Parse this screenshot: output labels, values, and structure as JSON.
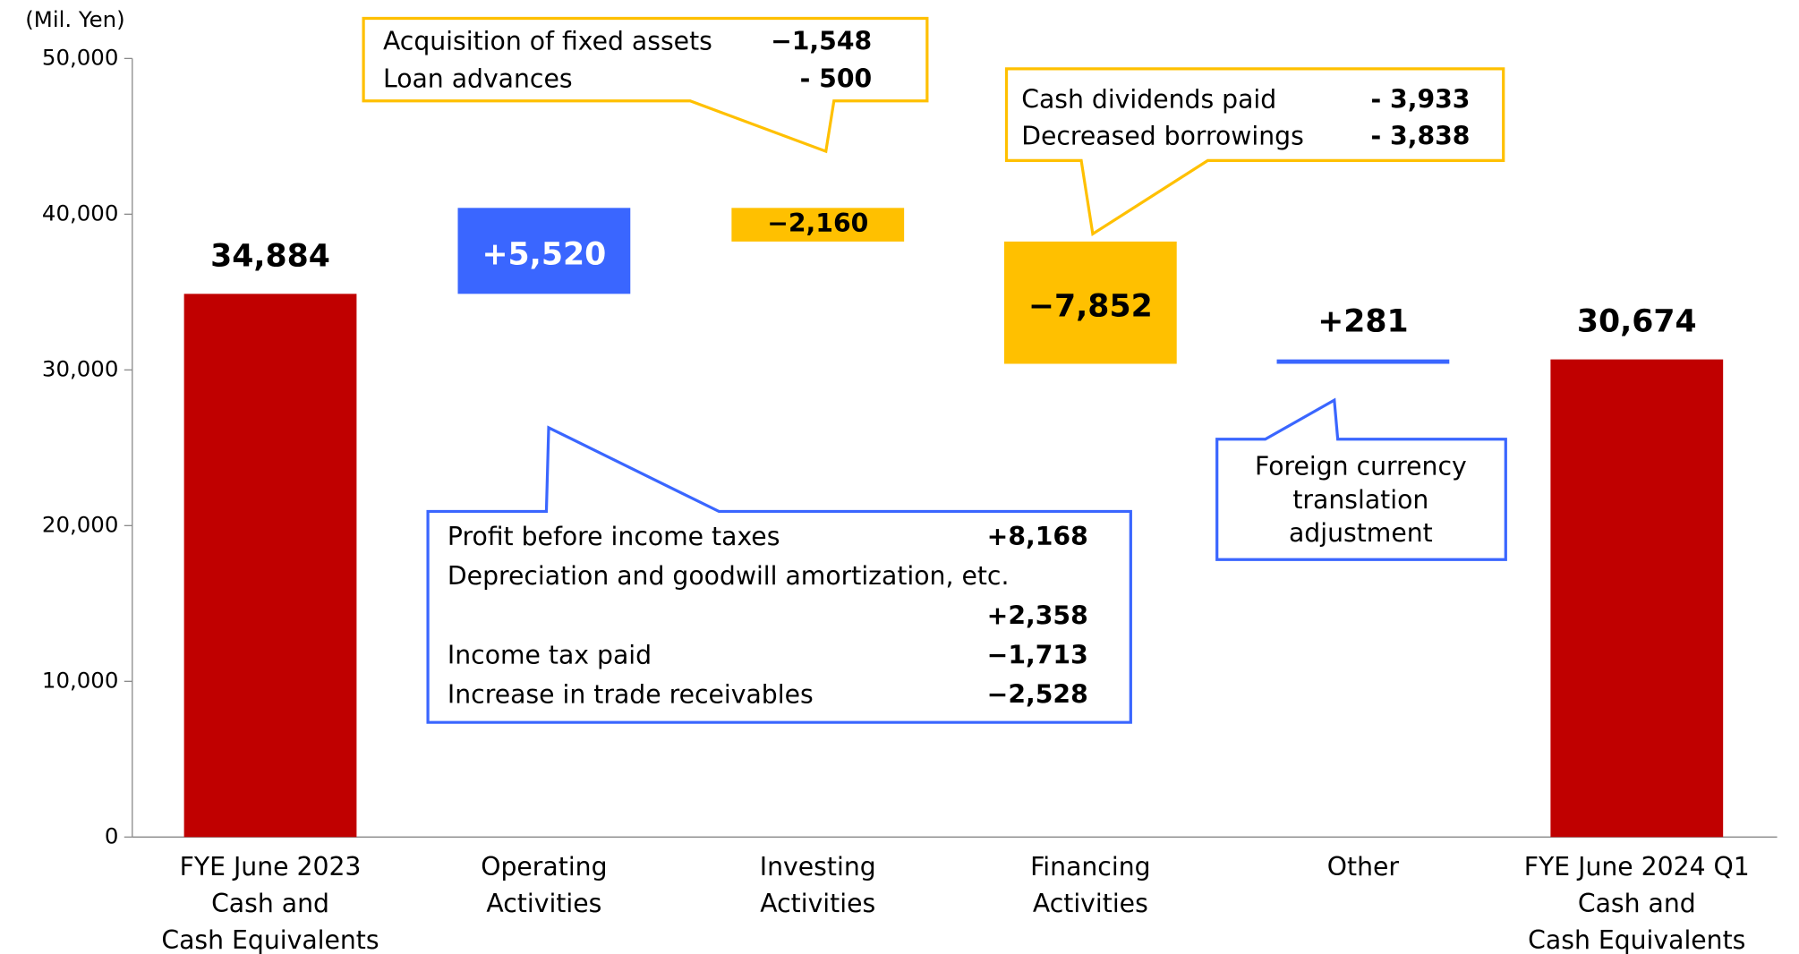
{
  "chart_data": {
    "type": "waterfall",
    "unit_label": "(Mil. Yen)",
    "categories": [
      [
        "FYE June 2023",
        "Cash and",
        "Cash Equivalents"
      ],
      [
        "Operating",
        "Activities"
      ],
      [
        "Investing",
        "Activities"
      ],
      [
        "Financing",
        "Activities"
      ],
      [
        "Other"
      ],
      [
        "FYE June 2024 Q1",
        "Cash and",
        "Cash Equivalents"
      ]
    ],
    "measure": [
      "absolute",
      "relative",
      "relative",
      "relative",
      "relative",
      "absolute"
    ],
    "values": [
      34884,
      5520,
      -2160,
      -7852,
      281,
      30674
    ],
    "value_labels": [
      "34,884",
      "+5,520",
      "−2,160",
      "−7,852",
      "+281",
      "30,674"
    ],
    "colors": [
      "#c00000",
      "#3a66ff",
      "#ffc000",
      "#ffc000",
      "#3a66ff",
      "#c00000"
    ],
    "ylim": [
      0,
      50000
    ],
    "yticks": [
      0,
      {
        "value": 10000,
        "label": "10,000"
      },
      {
        "value": 20000,
        "label": "20,000"
      },
      {
        "value": 30000,
        "label": "30,000"
      },
      {
        "value": 40000,
        "label": "40,000"
      },
      {
        "value": 50000,
        "label": "50,000"
      }
    ],
    "annotations": [
      {
        "rows": [
          {
            "label": "Acquisition of fixed assets",
            "value": "−1,548"
          },
          {
            "label": "Loan advances",
            "value": "- 500"
          }
        ]
      },
      {
        "rows": [
          {
            "label": "Cash dividends paid",
            "value": "- 3,933"
          },
          {
            "label": "Decreased borrowings",
            "value": "- 3,838"
          }
        ]
      },
      {
        "rows": [
          {
            "label": "Profit before income taxes",
            "value": "+8,168"
          },
          {
            "label": "Depreciation and goodwill amortization, etc."
          },
          {
            "value": "+2,358"
          },
          {
            "label": "Income tax paid",
            "value": "−1,713"
          },
          {
            "label": "Increase in trade receivables",
            "value": "−2,528"
          }
        ]
      },
      {
        "rows": [
          {
            "label": "Foreign currency"
          },
          {
            "label": "translation"
          },
          {
            "label": "adjustment"
          }
        ]
      }
    ]
  }
}
